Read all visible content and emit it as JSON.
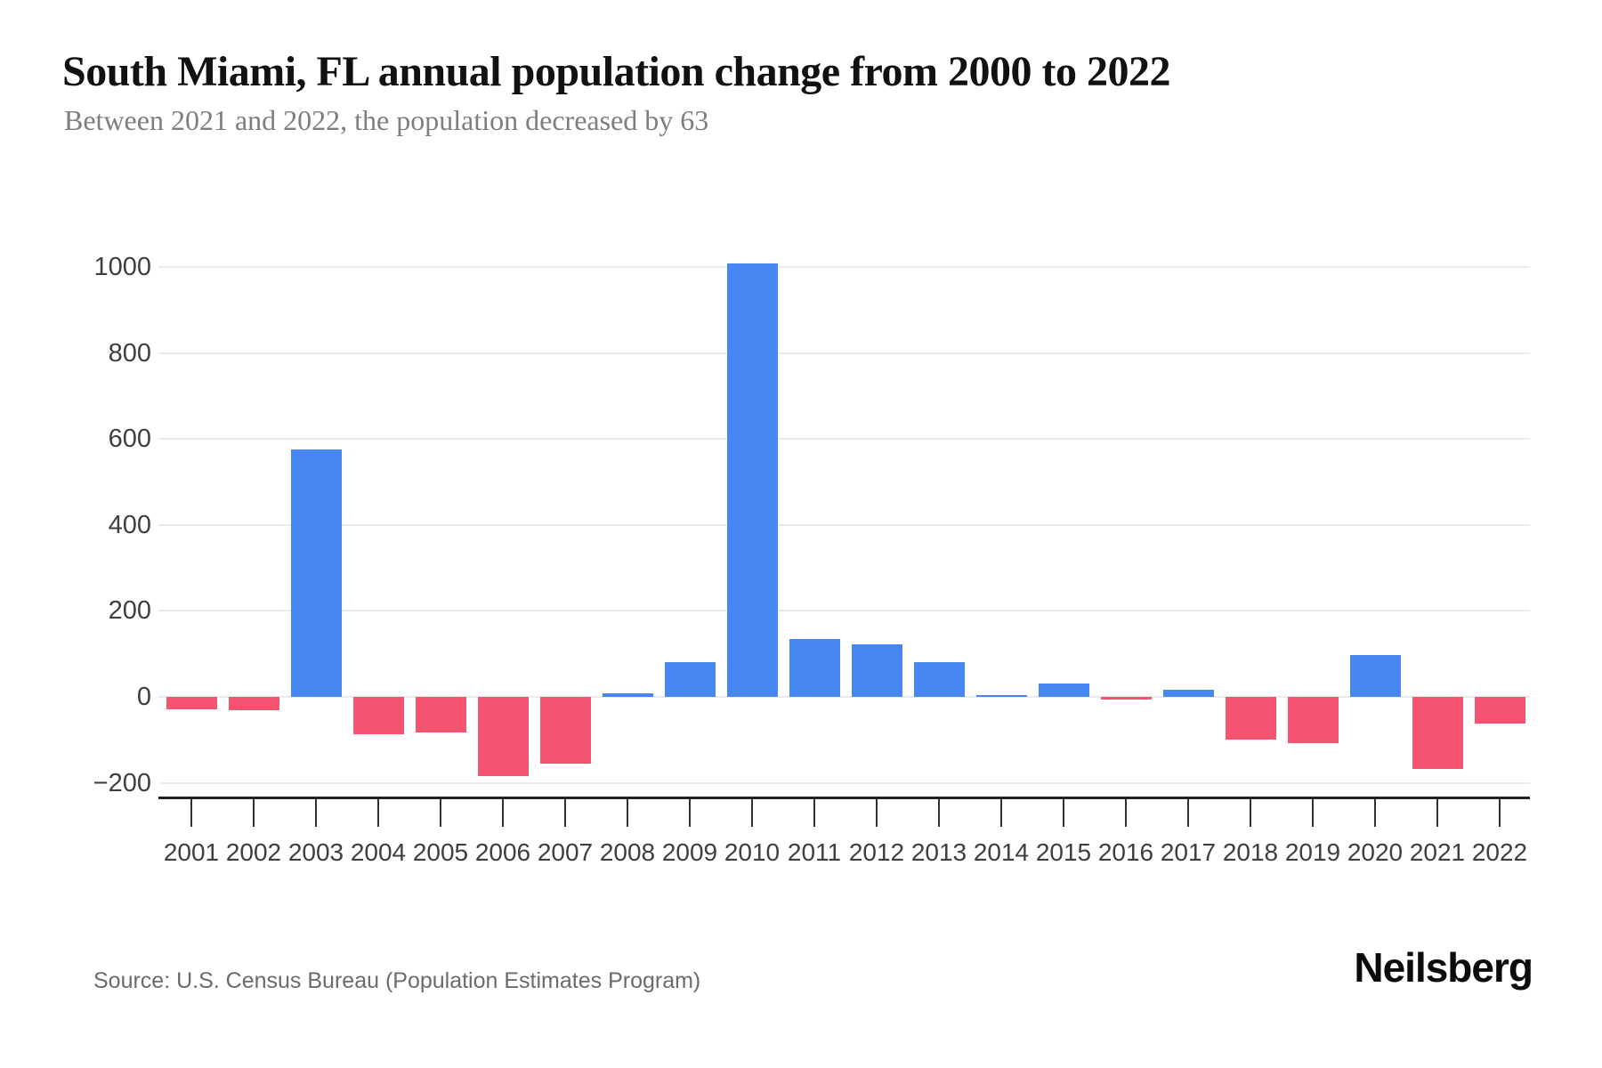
{
  "header": {
    "title": "South Miami, FL annual population change from 2000 to 2022",
    "subtitle": "Between 2021 and 2022, the population decreased by 63"
  },
  "footer": {
    "source": "Source: U.S. Census Bureau (Population Estimates Program)",
    "brand": "Neilsberg"
  },
  "chart_data": {
    "type": "bar",
    "title": "South Miami, FL annual population change from 2000 to 2022",
    "subtitle": "Between 2021 and 2022, the population decreased by 63",
    "categories": [
      "2001",
      "2002",
      "2003",
      "2004",
      "2005",
      "2006",
      "2007",
      "2008",
      "2009",
      "2010",
      "2011",
      "2012",
      "2013",
      "2014",
      "2015",
      "2016",
      "2017",
      "2018",
      "2019",
      "2020",
      "2021",
      "2022"
    ],
    "values": [
      -30,
      -32,
      576,
      -86,
      -82,
      -184,
      -155,
      8,
      80,
      1008,
      134,
      122,
      80,
      3,
      32,
      -7,
      16,
      -100,
      -108,
      98,
      -168,
      -63
    ],
    "xlabel": "",
    "ylabel": "",
    "ylim": [
      -200,
      1000
    ],
    "yticks": [
      1000,
      800,
      600,
      400,
      200,
      0,
      -200
    ],
    "ytick_labels": [
      "1000",
      "800",
      "600",
      "400",
      "200",
      "0",
      "−200"
    ],
    "grid": true,
    "legend": false,
    "colors": {
      "positive": "#4687F4",
      "negative": "#F4546F"
    }
  }
}
